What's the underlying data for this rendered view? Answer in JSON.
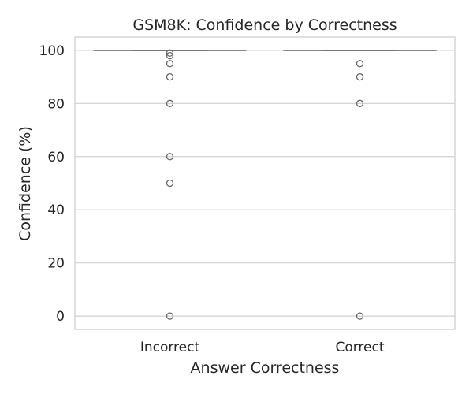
{
  "chart_data": {
    "type": "box",
    "title": "GSM8K: Confidence by Correctness",
    "xlabel": "Answer Correctness",
    "ylabel": "Confidence (%)",
    "categories": [
      "Incorrect",
      "Correct"
    ],
    "ylim": [
      -5,
      105
    ],
    "yticks": [
      0,
      20,
      40,
      60,
      80,
      100
    ],
    "grid": true,
    "boxes": [
      {
        "category": "Incorrect",
        "q1": 100,
        "median": 100,
        "q3": 100,
        "whisker_low": 100,
        "whisker_high": 100,
        "outliers": [
          99,
          98,
          95,
          90,
          80,
          60,
          50,
          0
        ]
      },
      {
        "category": "Correct",
        "q1": 100,
        "median": 100,
        "q3": 100,
        "whisker_low": 100,
        "whisker_high": 100,
        "outliers": [
          95,
          90,
          80,
          0
        ]
      }
    ],
    "colors": {
      "box_line": "#666666",
      "grid": "#d0d0d0",
      "frame": "#cccccc",
      "text": "#262626"
    }
  }
}
